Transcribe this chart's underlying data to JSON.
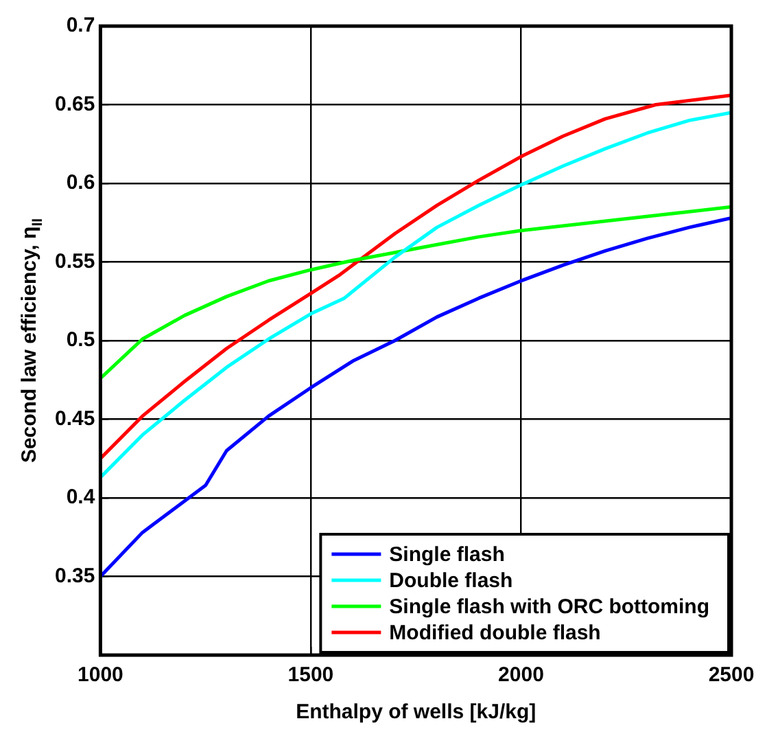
{
  "chart_data": {
    "type": "line",
    "xlabel": "Enthalpy of wells [kJ/kg]",
    "ylabel": "Second law efficiency, η$_{II}$",
    "xlim": [
      1000,
      2500
    ],
    "xticks": [
      1000,
      1500,
      2000,
      2500
    ],
    "ylim": [
      0.3,
      0.7
    ],
    "yticks": [
      0.35,
      0.4,
      0.45,
      0.5,
      0.55,
      0.6,
      0.65,
      0.7
    ],
    "grid": true,
    "legend": "bottom right",
    "marker": "none",
    "line_style": "solid",
    "series": [
      {
        "name": "Single flash",
        "color": "#0000ff",
        "x": [
          1000,
          1100,
          1250,
          1300,
          1400,
          1500,
          1600,
          1700,
          1800,
          1900,
          2000,
          2100,
          2200,
          2300,
          2400,
          2500
        ],
        "values": [
          0.35,
          0.378,
          0.408,
          0.43,
          0.452,
          0.47,
          0.487,
          0.5,
          0.515,
          0.527,
          0.538,
          0.548,
          0.557,
          0.565,
          0.572,
          0.578
        ]
      },
      {
        "name": "Double flash",
        "color": "#00ffff",
        "x": [
          1000,
          1100,
          1200,
          1300,
          1400,
          1500,
          1580,
          1700,
          1800,
          1900,
          2000,
          2100,
          2200,
          2300,
          2400,
          2500
        ],
        "values": [
          0.413,
          0.44,
          0.462,
          0.483,
          0.501,
          0.517,
          0.527,
          0.553,
          0.572,
          0.586,
          0.599,
          0.611,
          0.622,
          0.632,
          0.64,
          0.645
        ]
      },
      {
        "name": "Single flash with ORC bottoming",
        "color": "#00ff00",
        "x": [
          1000,
          1100,
          1200,
          1300,
          1400,
          1500,
          1600,
          1700,
          1800,
          1900,
          2000,
          2200,
          2400,
          2500
        ],
        "values": [
          0.476,
          0.501,
          0.516,
          0.528,
          0.538,
          0.545,
          0.551,
          0.556,
          0.561,
          0.566,
          0.57,
          0.576,
          0.582,
          0.585
        ]
      },
      {
        "name": "Modified double flash",
        "color": "#ff0000",
        "x": [
          1000,
          1100,
          1200,
          1300,
          1400,
          1500,
          1570,
          1700,
          1800,
          1900,
          2000,
          2100,
          2200,
          2320,
          2500
        ],
        "values": [
          0.425,
          0.452,
          0.474,
          0.495,
          0.513,
          0.53,
          0.542,
          0.568,
          0.586,
          0.602,
          0.617,
          0.63,
          0.641,
          0.65,
          0.656
        ]
      }
    ]
  }
}
